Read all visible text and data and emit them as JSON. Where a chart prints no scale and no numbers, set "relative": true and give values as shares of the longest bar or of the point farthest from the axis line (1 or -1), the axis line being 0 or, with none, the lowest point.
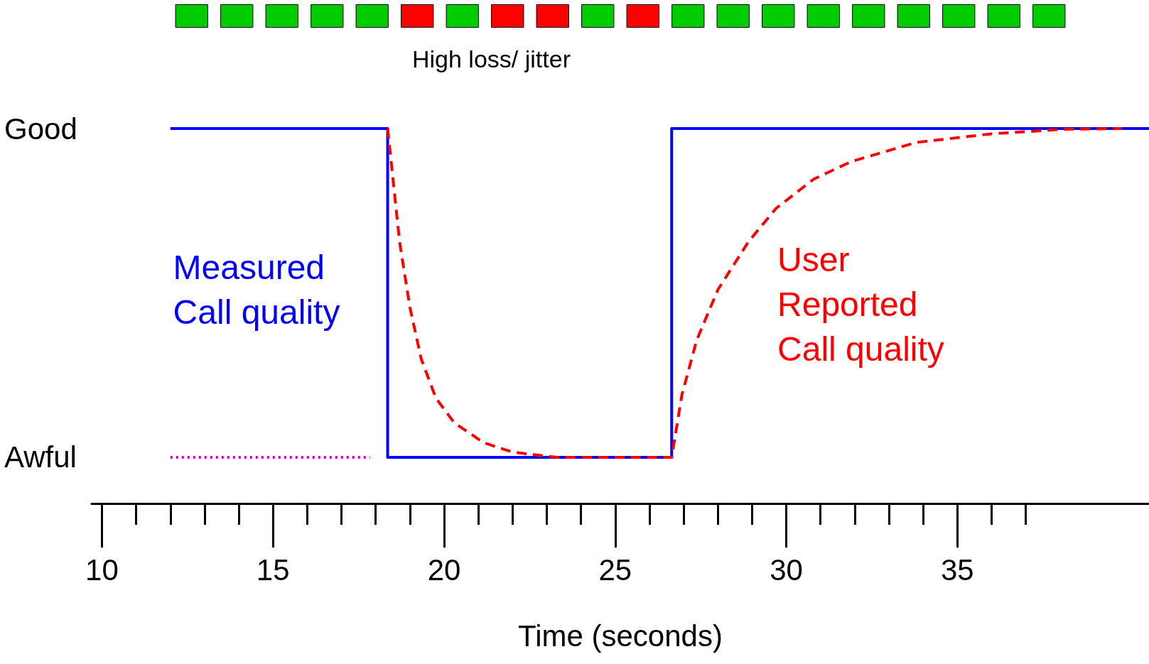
{
  "chart_data": [
    {
      "type": "bar",
      "relative": true,
      "annotations": [
        "High loss/ jitter"
      ],
      "categories": [
        null,
        null,
        null,
        null,
        null,
        null,
        null,
        null,
        null,
        null,
        null,
        null,
        null,
        null,
        null,
        null,
        null,
        null,
        null,
        null
      ],
      "values": [
        1,
        1,
        1,
        1,
        1,
        1,
        1,
        1,
        1,
        1,
        1,
        1,
        1,
        1,
        1,
        1,
        1,
        1,
        1,
        1
      ],
      "colors": [
        "#00cc00",
        "#00cc00",
        "#00cc00",
        "#00cc00",
        "#00cc00",
        "#ff0000",
        "#00cc00",
        "#ff0000",
        "#ff0000",
        "#00cc00",
        "#ff0000",
        "#00cc00",
        "#00cc00",
        "#00cc00",
        "#00cc00",
        "#00cc00",
        "#00cc00",
        "#00cc00",
        "#00cc00",
        "#00cc00"
      ]
    },
    {
      "type": "line",
      "relative": true,
      "xlabel": "Time (seconds)",
      "annotations": [
        "Good",
        "Awful"
      ],
      "xlim": [
        9.7,
        40.6
      ],
      "xticks": [
        10,
        15,
        20,
        25,
        30,
        35
      ],
      "grid": false,
      "legend": false,
      "marker": "none",
      "series": [
        {
          "line_style": "dotted",
          "color": "#cc00cc",
          "x": [
            12.0,
            17.83
          ],
          "values": [
            0.123,
            0.123
          ]
        },
        {
          "name": "Measured Call quality",
          "color": "#0000ff",
          "line_style": "solid",
          "x": [
            12.0,
            18.35,
            18.35,
            26.65,
            26.65,
            40.6
          ],
          "values": [
            1,
            1,
            0.123,
            0.123,
            1,
            1
          ]
        },
        {
          "name": "User Reported Call quality",
          "color": "#ff0000",
          "line_style": "dashed",
          "x": [
            18.35,
            18.7,
            19.0,
            19.33,
            19.76,
            20.3,
            21.16,
            22.0,
            23.3,
            26.65,
            26.95,
            27.38,
            28.0,
            28.9,
            29.7,
            30.8,
            31.9,
            33.8,
            36.0,
            38.1,
            39.8
          ],
          "values": [
            1,
            0.697,
            0.523,
            0.386,
            0.281,
            0.215,
            0.162,
            0.137,
            0.123,
            0.123,
            0.29,
            0.435,
            0.57,
            0.699,
            0.787,
            0.865,
            0.912,
            0.963,
            0.986,
            0.998,
            1
          ]
        }
      ]
    }
  ]
}
